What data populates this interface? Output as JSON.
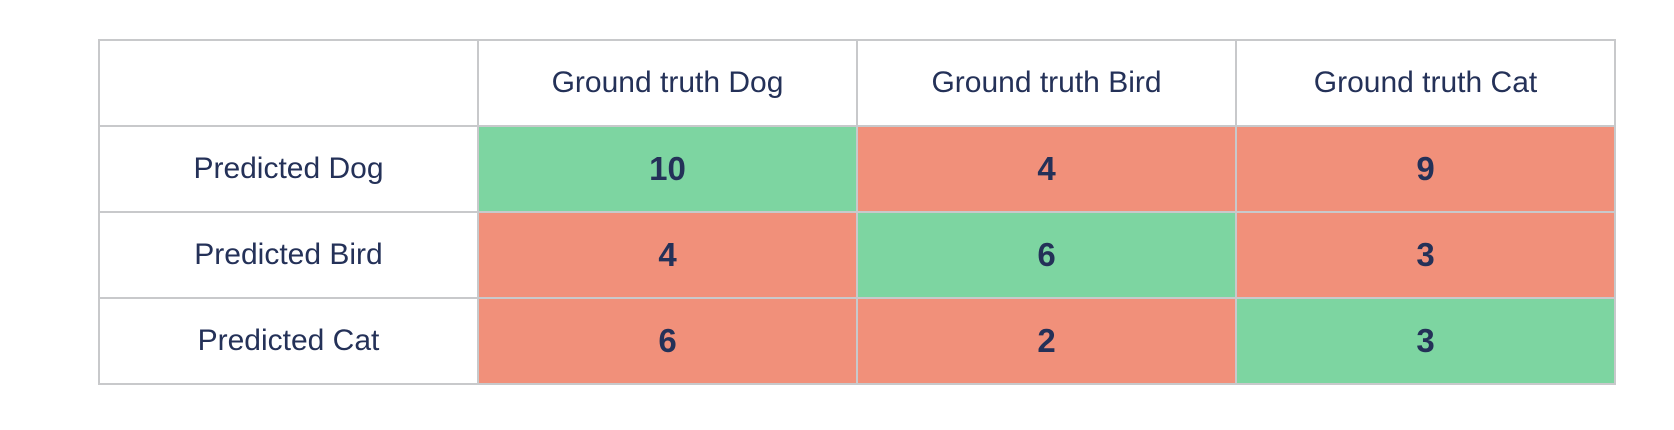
{
  "chart_data": {
    "type": "table",
    "subtype": "confusion-matrix",
    "columns": [
      "",
      "Ground truth Dog",
      "Ground truth Bird",
      "Ground truth Cat"
    ],
    "rows": [
      "Predicted Dog",
      "Predicted Bird",
      "Predicted Cat"
    ],
    "values": [
      [
        10,
        4,
        9
      ],
      [
        4,
        6,
        3
      ],
      [
        6,
        2,
        3
      ]
    ],
    "cell_states": [
      [
        "correct",
        "incorrect",
        "incorrect"
      ],
      [
        "incorrect",
        "correct",
        "incorrect"
      ],
      [
        "incorrect",
        "incorrect",
        "correct"
      ]
    ]
  },
  "matrix": {
    "corner_label": "",
    "column_headers": [
      "Ground truth Dog",
      "Ground truth Bird",
      "Ground truth Cat"
    ],
    "rows": [
      {
        "label": "Predicted Dog",
        "cells": [
          {
            "value": "10",
            "state": "correct"
          },
          {
            "value": "4",
            "state": "incorrect"
          },
          {
            "value": "9",
            "state": "incorrect"
          }
        ]
      },
      {
        "label": "Predicted Bird",
        "cells": [
          {
            "value": "4",
            "state": "incorrect"
          },
          {
            "value": "6",
            "state": "correct"
          },
          {
            "value": "3",
            "state": "incorrect"
          }
        ]
      },
      {
        "label": "Predicted Cat",
        "cells": [
          {
            "value": "6",
            "state": "incorrect"
          },
          {
            "value": "2",
            "state": "incorrect"
          },
          {
            "value": "3",
            "state": "correct"
          }
        ]
      }
    ]
  },
  "colors": {
    "correct": "#7dd5a1",
    "incorrect": "#f1907a",
    "text": "#243158",
    "border": "#c8c9cb",
    "background": "#ffffff"
  }
}
